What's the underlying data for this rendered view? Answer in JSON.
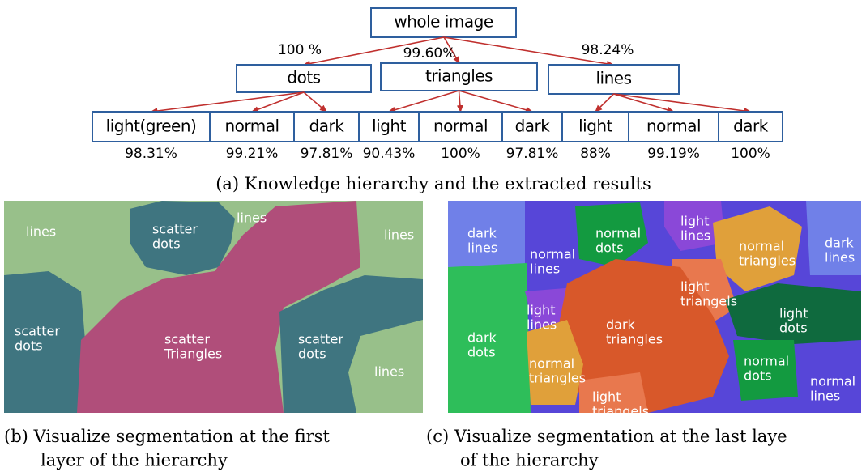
{
  "hierarchy": {
    "root": "whole image",
    "groups": [
      {
        "label": "dots",
        "rate": "100 %",
        "leaves": [
          {
            "label": "light(green)",
            "rate": "98.31%"
          },
          {
            "label": "normal",
            "rate": "99.21%"
          },
          {
            "label": "dark",
            "rate": "97.81%"
          }
        ]
      },
      {
        "label": "triangles",
        "rate": "99.60%",
        "leaves": [
          {
            "label": "light",
            "rate": "90.43%"
          },
          {
            "label": "normal",
            "rate": "100%"
          },
          {
            "label": "dark",
            "rate": "97.81%"
          }
        ]
      },
      {
        "label": "lines",
        "rate": "98.24%",
        "leaves": [
          {
            "label": "light",
            "rate": "88%"
          },
          {
            "label": "normal",
            "rate": "99.19%"
          },
          {
            "label": "dark",
            "rate": "100%"
          }
        ]
      }
    ]
  },
  "captions": {
    "a": {
      "tag": "(a)",
      "lines": [
        "Knowledge hierarchy and the extracted results"
      ]
    },
    "b": {
      "tag": "(b)",
      "lines": [
        "Visualize segmentation at the first",
        "layer of the hierarchy"
      ]
    },
    "c": {
      "tag": "(c)",
      "lines": [
        "Visualize segmentation at the last laye",
        "of the hierarchy"
      ]
    }
  },
  "panel_b": {
    "labels": [
      [
        "lines"
      ],
      [
        "scatter",
        "dots"
      ],
      [
        "lines"
      ],
      [
        "lines"
      ],
      [
        "scatter",
        "dots"
      ],
      [
        "scatter",
        "Triangles"
      ],
      [
        "scatter",
        "dots"
      ],
      [
        "lines"
      ]
    ]
  },
  "panel_c": {
    "labels": [
      [
        "dark",
        "lines"
      ],
      [
        "normal",
        "lines"
      ],
      [
        "normal",
        "dots"
      ],
      [
        "light",
        "lines"
      ],
      [
        "normal",
        "triangles"
      ],
      [
        "dark",
        "lines"
      ],
      [
        "light",
        "triangels"
      ],
      [
        "light",
        "lines"
      ],
      [
        "dark",
        "triangles"
      ],
      [
        "light",
        "dots"
      ],
      [
        "dark",
        "dots"
      ],
      [
        "normal",
        "triangles"
      ],
      [
        "normal",
        "dots"
      ],
      [
        "normal",
        "lines"
      ],
      [
        "light",
        "triangels"
      ]
    ]
  }
}
